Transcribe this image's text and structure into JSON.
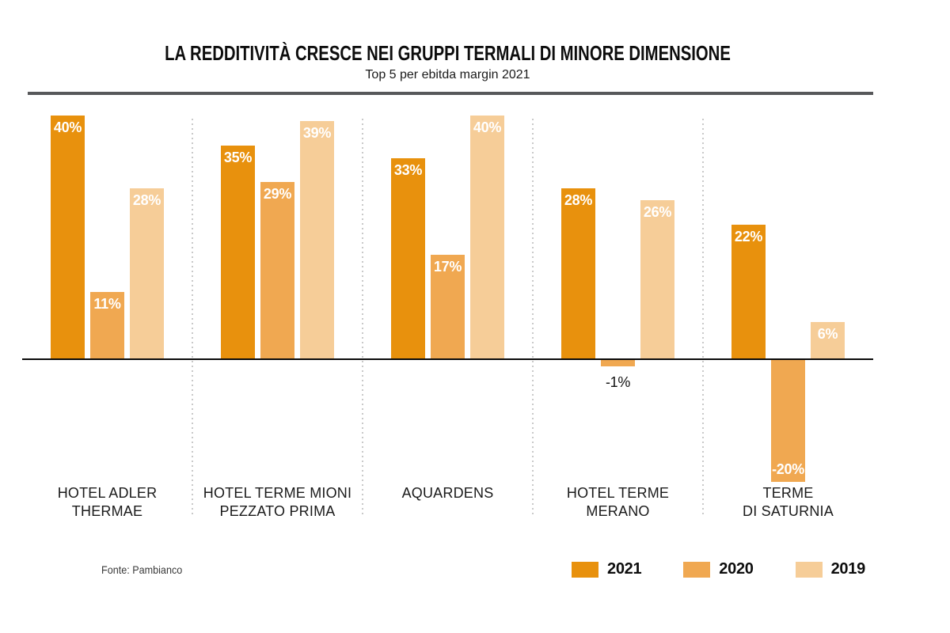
{
  "header": {
    "title": "LA REDDITIVITÀ CRESCE NEI GRUPPI TERMALI DI MINORE DIMENSIONE",
    "subtitle": "Top 5 per ebitda margin 2021"
  },
  "footer": {
    "source": "Fonte: Pambianco"
  },
  "colors": {
    "series_2021": "#E8910D",
    "series_2020": "#F0A851",
    "series_2019": "#F6CD98",
    "axis": "#0a0a0a",
    "divider": "#57585a"
  },
  "legend": {
    "position": "bottom-right",
    "items": [
      {
        "label": "2021",
        "color": "#E8910D"
      },
      {
        "label": "2020",
        "color": "#F0A851"
      },
      {
        "label": "2019",
        "color": "#F6CD98"
      }
    ]
  },
  "chart_data": {
    "type": "bar",
    "title": "LA REDDITIVITÀ CRESCE NEI GRUPPI TERMALI DI MINORE DIMENSIONE",
    "subtitle": "Top 5 per ebitda margin 2021",
    "unit": "%",
    "categories": [
      "HOTEL ADLER THERMAE",
      "HOTEL TERME MIONI PEZZATO PRIMA",
      "AQUARDENS",
      "HOTEL TERME MERANO",
      "TERME DI SATURNIA"
    ],
    "category_lines": [
      [
        "HOTEL ADLER",
        "THERMAE"
      ],
      [
        "HOTEL TERME MIONI",
        "PEZZATO PRIMA"
      ],
      [
        "AQUARDENS"
      ],
      [
        "HOTEL TERME",
        "MERANO"
      ],
      [
        "TERME",
        "DI SATURNIA"
      ]
    ],
    "series": [
      {
        "name": "2021",
        "color": "#E8910D",
        "values": [
          40,
          35,
          33,
          28,
          22
        ]
      },
      {
        "name": "2020",
        "color": "#F0A851",
        "values": [
          11,
          29,
          17,
          -1,
          -20
        ]
      },
      {
        "name": "2019",
        "color": "#F6CD98",
        "values": [
          28,
          39,
          40,
          26,
          6
        ]
      }
    ],
    "ylim": [
      -22,
      42
    ],
    "baseline": 0,
    "grid": false,
    "group_separators": "dotted",
    "legend_position": "bottom-right",
    "source": "Fonte: Pambianco"
  }
}
